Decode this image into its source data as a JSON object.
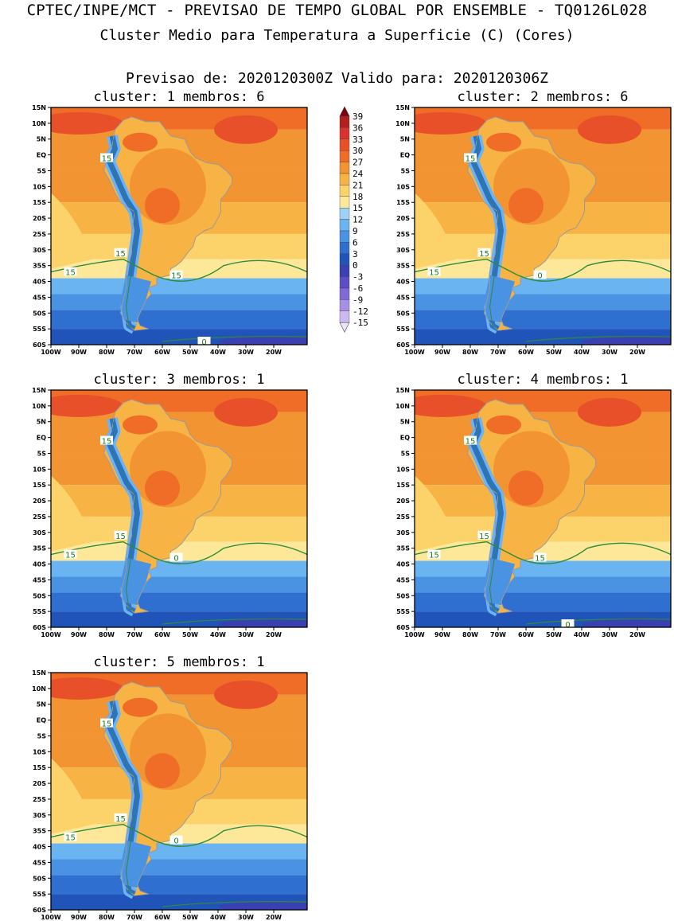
{
  "header": {
    "title1": "CPTEC/INPE/MCT - PREVISAO DE TEMPO GLOBAL POR ENSEMBLE - TQ0126L028",
    "title2": "Cluster Medio para Temperatura a Superficie (C) (Cores)",
    "title3": "Previsao de: 2020120300Z    Valido para: 2020120306Z"
  },
  "axes": {
    "lat_labels": [
      "15N",
      "10N",
      "5N",
      "EQ",
      "5S",
      "10S",
      "15S",
      "20S",
      "25S",
      "30S",
      "35S",
      "40S",
      "45S",
      "50S",
      "55S",
      "60S"
    ],
    "lon_labels": [
      "100W",
      "90W",
      "80W",
      "70W",
      "60W",
      "50W",
      "40W",
      "30W",
      "20W"
    ]
  },
  "colorbar": {
    "labels": [
      "39",
      "36",
      "33",
      "30",
      "27",
      "24",
      "21",
      "18",
      "15",
      "12",
      "9",
      "6",
      "3",
      "0",
      "-3",
      "-6",
      "-9",
      "-12",
      "-15"
    ],
    "colors": [
      "#7f0010",
      "#b21f1f",
      "#d8332d",
      "#e8502a",
      "#f06d28",
      "#f39432",
      "#f7b343",
      "#fbd36a",
      "#fde89a",
      "#9fd2f7",
      "#6ab4f2",
      "#4a92e2",
      "#2f6fd0",
      "#2054b8",
      "#3a3fb2",
      "#5c4ec6",
      "#7f6ad8",
      "#a78fe6",
      "#cdb9f2",
      "#ece2fb"
    ]
  },
  "panels": [
    {
      "title": "cluster: 1   membros: 6",
      "labels": [
        "15",
        "15",
        "15",
        "15",
        "0"
      ]
    },
    {
      "title": "cluster: 2   membros: 6",
      "labels": [
        "15",
        "15",
        "15",
        "0"
      ]
    },
    {
      "title": "cluster: 3   membros: 1",
      "labels": [
        "15",
        "15",
        "15",
        "0"
      ]
    },
    {
      "title": "cluster: 4   membros: 1",
      "labels": [
        "15",
        "15",
        "15",
        "15",
        "0"
      ]
    },
    {
      "title": "cluster: 5   membros: 1",
      "labels": [
        "15",
        "15",
        "15",
        "0"
      ]
    }
  ]
}
